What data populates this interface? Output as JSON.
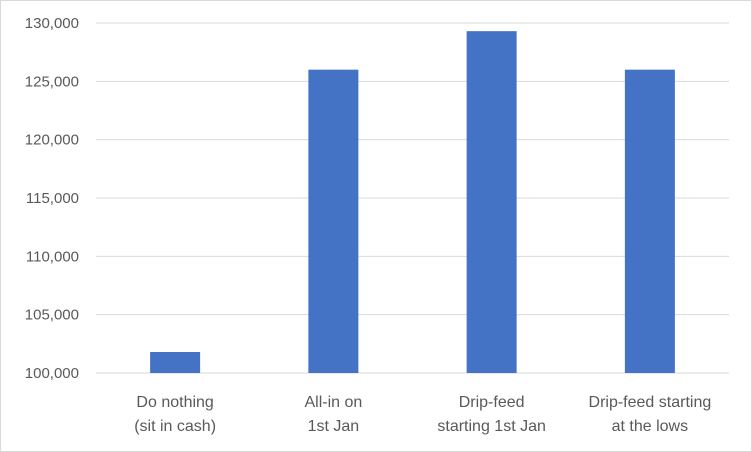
{
  "chart_data": {
    "type": "bar",
    "categories": [
      [
        "Do nothing",
        "(sit in cash)"
      ],
      [
        "All-in on",
        "1st Jan"
      ],
      [
        "Drip-feed",
        "starting 1st Jan"
      ],
      [
        "Drip-feed starting",
        "at the lows"
      ]
    ],
    "values": [
      101800,
      126000,
      129300,
      126000
    ],
    "ylim": [
      100000,
      130000
    ],
    "yticks": [
      100000,
      105000,
      110000,
      115000,
      120000,
      125000,
      130000
    ],
    "ytick_labels": [
      "100,000",
      "105,000",
      "110,000",
      "115,000",
      "120,000",
      "125,000",
      "130,000"
    ],
    "grid": true,
    "bar_color": "#4472c4",
    "legend": "none"
  }
}
